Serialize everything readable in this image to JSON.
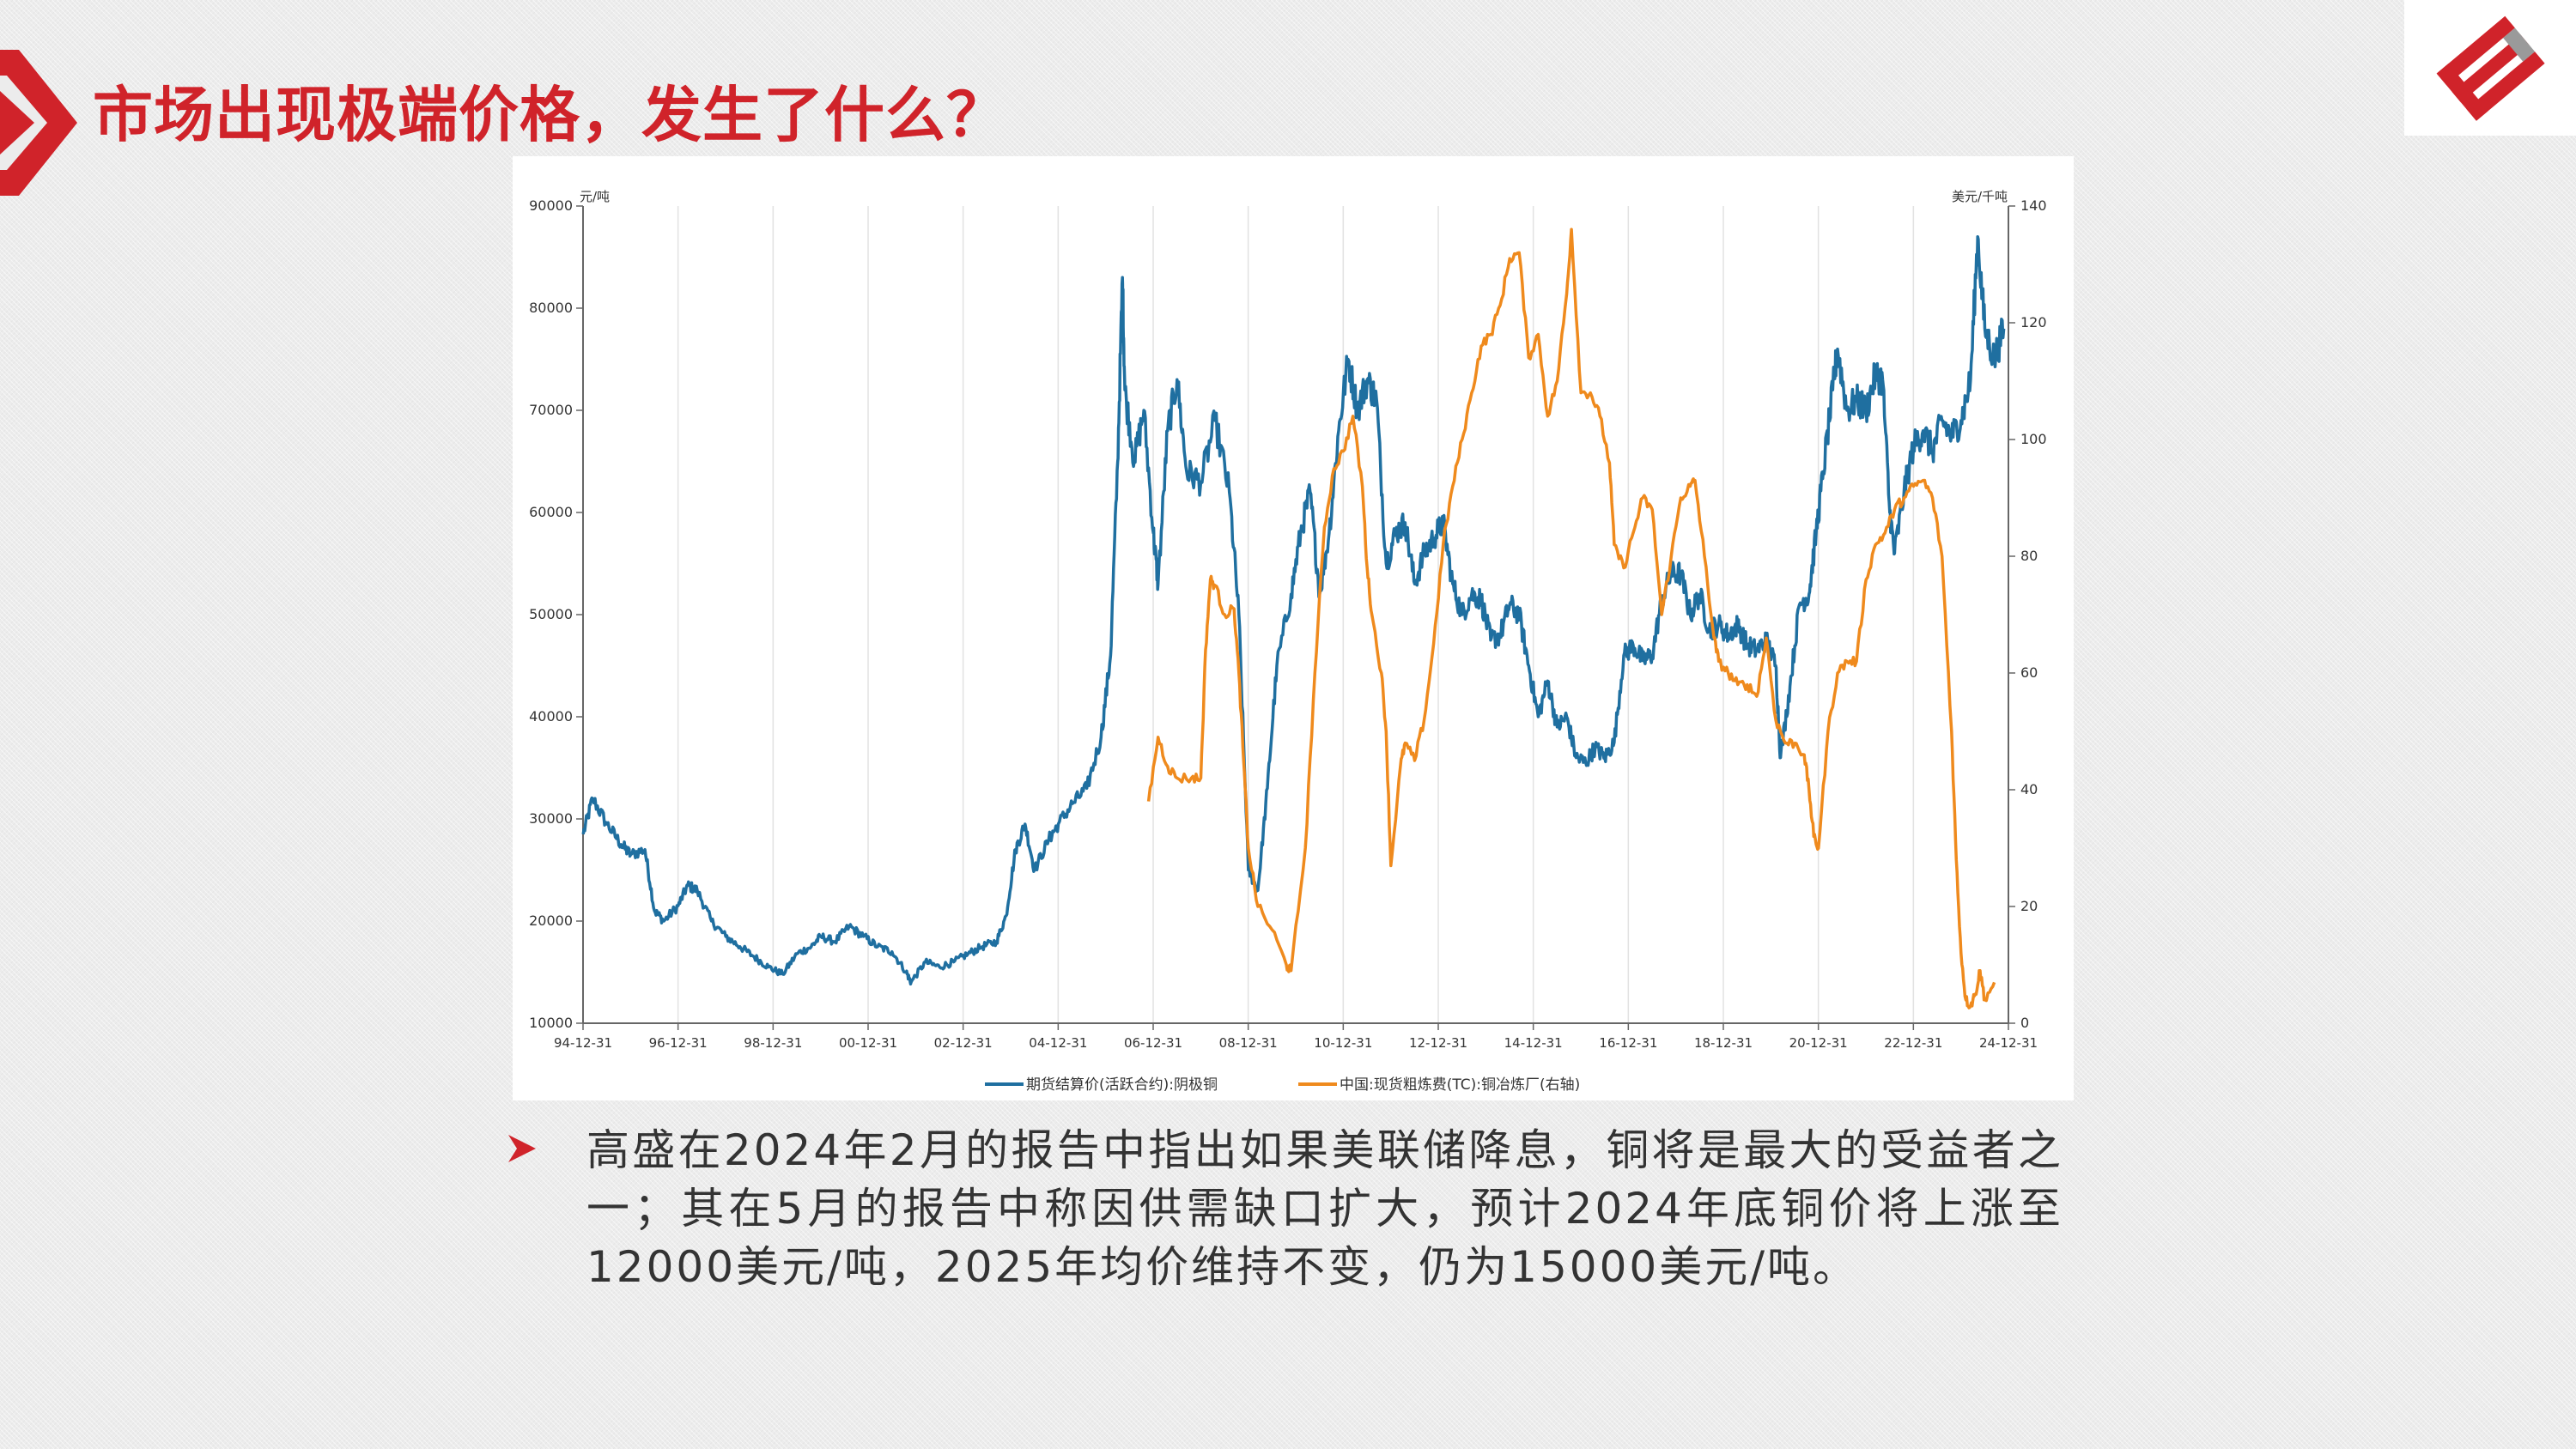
{
  "slide": {
    "title": "市场出现极端价格，发生了什么？",
    "body": "高盛在2024年2月的报告中指出如果美联储降息，铜将是最大的受益者之一；其在5月的报告中称因供需缺口扩大，预计2024年底铜价将上涨至12000美元/吨，2025年均价维持不变，仍为15000美元/吨。"
  },
  "colors": {
    "accent": "#d0232a",
    "series_blue": "#1f6fa0",
    "series_orange": "#ef8a1d"
  },
  "icons": {
    "arrow": "chevron-arrow-icon",
    "logo": "company-logo-icon",
    "bullet": "triangle-bullet-icon"
  },
  "chart_data": {
    "type": "line",
    "left_axis_label": "元/吨",
    "right_axis_label": "美元/千吨",
    "ylim_left": [
      10000,
      90000
    ],
    "ylim_right": [
      0,
      140
    ],
    "y_ticks_left": [
      "90000",
      "80000",
      "70000",
      "60000",
      "50000",
      "40000",
      "30000",
      "20000",
      "10000"
    ],
    "y_ticks_right": [
      "140",
      "120",
      "100",
      "80",
      "60",
      "40",
      "20",
      "0"
    ],
    "x_ticks": [
      "94-12-31",
      "96-12-31",
      "98-12-31",
      "00-12-31",
      "02-12-31",
      "04-12-31",
      "06-12-31",
      "08-12-31",
      "10-12-31",
      "12-12-31",
      "14-12-31",
      "16-12-31",
      "18-12-31",
      "20-12-31",
      "22-12-31",
      "24-12-31"
    ],
    "xlim": [
      1994.997,
      2024.997
    ],
    "grid": "vertical",
    "legend_position": "bottom",
    "series": [
      {
        "name": "期货结算价(活跃合约):阴极铜",
        "axis": "left",
        "points": [
          [
            1995.0,
            28500
          ],
          [
            1995.2,
            32000
          ],
          [
            1995.5,
            29500
          ],
          [
            1995.8,
            27500
          ],
          [
            1996.0,
            26500
          ],
          [
            1996.3,
            27000
          ],
          [
            1996.5,
            21000
          ],
          [
            1996.7,
            20000
          ],
          [
            1997.0,
            21500
          ],
          [
            1997.2,
            23500
          ],
          [
            1997.4,
            23000
          ],
          [
            1997.7,
            20000
          ],
          [
            1998.0,
            18500
          ],
          [
            1998.3,
            17500
          ],
          [
            1998.6,
            16500
          ],
          [
            1998.9,
            15500
          ],
          [
            1999.2,
            14800
          ],
          [
            1999.5,
            16800
          ],
          [
            1999.8,
            17500
          ],
          [
            2000.0,
            18500
          ],
          [
            2000.3,
            18000
          ],
          [
            2000.6,
            19500
          ],
          [
            2000.9,
            18500
          ],
          [
            2001.2,
            17500
          ],
          [
            2001.5,
            17000
          ],
          [
            2001.8,
            15000
          ],
          [
            2001.9,
            14000
          ],
          [
            2002.2,
            16000
          ],
          [
            2002.5,
            15500
          ],
          [
            2002.8,
            16000
          ],
          [
            2003.1,
            16800
          ],
          [
            2003.4,
            17500
          ],
          [
            2003.7,
            18000
          ],
          [
            2003.9,
            20500
          ],
          [
            2004.1,
            27000
          ],
          [
            2004.3,
            29500
          ],
          [
            2004.5,
            25000
          ],
          [
            2004.8,
            28000
          ],
          [
            2005.0,
            29500
          ],
          [
            2005.3,
            31500
          ],
          [
            2005.6,
            33000
          ],
          [
            2005.9,
            38000
          ],
          [
            2006.1,
            46000
          ],
          [
            2006.25,
            65000
          ],
          [
            2006.35,
            83000
          ],
          [
            2006.4,
            72000
          ],
          [
            2006.6,
            65000
          ],
          [
            2006.8,
            70000
          ],
          [
            2007.0,
            58000
          ],
          [
            2007.1,
            53000
          ],
          [
            2007.3,
            68000
          ],
          [
            2007.5,
            73000
          ],
          [
            2007.7,
            64000
          ],
          [
            2008.0,
            63000
          ],
          [
            2008.3,
            69000
          ],
          [
            2008.6,
            62000
          ],
          [
            2008.8,
            50000
          ],
          [
            2009.0,
            25000
          ],
          [
            2009.2,
            23000
          ],
          [
            2009.4,
            33000
          ],
          [
            2009.6,
            45000
          ],
          [
            2009.9,
            52000
          ],
          [
            2010.1,
            58000
          ],
          [
            2010.3,
            62000
          ],
          [
            2010.5,
            52000
          ],
          [
            2010.7,
            58000
          ],
          [
            2010.9,
            68000
          ],
          [
            2011.1,
            75000
          ],
          [
            2011.3,
            70000
          ],
          [
            2011.5,
            73000
          ],
          [
            2011.7,
            71000
          ],
          [
            2011.9,
            55000
          ],
          [
            2012.1,
            58000
          ],
          [
            2012.3,
            59000
          ],
          [
            2012.5,
            53000
          ],
          [
            2012.7,
            56000
          ],
          [
            2012.9,
            57500
          ],
          [
            2013.1,
            59000
          ],
          [
            2013.3,
            53000
          ],
          [
            2013.5,
            50000
          ],
          [
            2013.7,
            52000
          ],
          [
            2013.9,
            51500
          ],
          [
            2014.1,
            47500
          ],
          [
            2014.3,
            48000
          ],
          [
            2014.5,
            51000
          ],
          [
            2014.7,
            50000
          ],
          [
            2014.9,
            45000
          ],
          [
            2015.1,
            40000
          ],
          [
            2015.3,
            43500
          ],
          [
            2015.5,
            39000
          ],
          [
            2015.7,
            40000
          ],
          [
            2015.9,
            36000
          ],
          [
            2016.1,
            35500
          ],
          [
            2016.3,
            37000
          ],
          [
            2016.5,
            36000
          ],
          [
            2016.7,
            37500
          ],
          [
            2016.9,
            46000
          ],
          [
            2017.1,
            47000
          ],
          [
            2017.3,
            45500
          ],
          [
            2017.5,
            46000
          ],
          [
            2017.7,
            51500
          ],
          [
            2017.9,
            54000
          ],
          [
            2018.1,
            54000
          ],
          [
            2018.3,
            50000
          ],
          [
            2018.5,
            52000
          ],
          [
            2018.7,
            48500
          ],
          [
            2018.9,
            49000
          ],
          [
            2019.1,
            48000
          ],
          [
            2019.3,
            49000
          ],
          [
            2019.5,
            47000
          ],
          [
            2019.7,
            46500
          ],
          [
            2019.9,
            47500
          ],
          [
            2020.1,
            45000
          ],
          [
            2020.2,
            36000
          ],
          [
            2020.4,
            43000
          ],
          [
            2020.6,
            51000
          ],
          [
            2020.8,
            52000
          ],
          [
            2020.95,
            58000
          ],
          [
            2021.1,
            64000
          ],
          [
            2021.3,
            72000
          ],
          [
            2021.4,
            76000
          ],
          [
            2021.6,
            70000
          ],
          [
            2021.8,
            71000
          ],
          [
            2022.0,
            70000
          ],
          [
            2022.2,
            73500
          ],
          [
            2022.35,
            73000
          ],
          [
            2022.5,
            60000
          ],
          [
            2022.6,
            56000
          ],
          [
            2022.8,
            62000
          ],
          [
            2023.0,
            66500
          ],
          [
            2023.2,
            68000
          ],
          [
            2023.4,
            66000
          ],
          [
            2023.6,
            69000
          ],
          [
            2023.8,
            67500
          ],
          [
            2024.0,
            69000
          ],
          [
            2024.2,
            73000
          ],
          [
            2024.35,
            87000
          ],
          [
            2024.5,
            78000
          ],
          [
            2024.7,
            75000
          ],
          [
            2024.9,
            78000
          ]
        ]
      },
      {
        "name": "中国:现货粗炼费(TC):铜冶炼厂(右轴)",
        "axis": "right",
        "points": [
          [
            2006.9,
            38
          ],
          [
            2007.1,
            49
          ],
          [
            2007.3,
            44
          ],
          [
            2007.5,
            42
          ],
          [
            2007.8,
            42
          ],
          [
            2008.0,
            42
          ],
          [
            2008.1,
            64
          ],
          [
            2008.2,
            76
          ],
          [
            2008.3,
            75
          ],
          [
            2008.5,
            70
          ],
          [
            2008.7,
            71
          ],
          [
            2008.8,
            60
          ],
          [
            2008.9,
            45
          ],
          [
            2009.0,
            30
          ],
          [
            2009.2,
            20
          ],
          [
            2009.5,
            16
          ],
          [
            2009.8,
            10
          ],
          [
            2009.9,
            9
          ],
          [
            2010.2,
            30
          ],
          [
            2010.4,
            60
          ],
          [
            2010.6,
            85
          ],
          [
            2010.8,
            95
          ],
          [
            2011.0,
            98
          ],
          [
            2011.2,
            104
          ],
          [
            2011.4,
            92
          ],
          [
            2011.5,
            78
          ],
          [
            2011.6,
            70
          ],
          [
            2011.8,
            60
          ],
          [
            2011.9,
            50
          ],
          [
            2012.0,
            27
          ],
          [
            2012.2,
            44
          ],
          [
            2012.3,
            48
          ],
          [
            2012.5,
            45
          ],
          [
            2012.7,
            52
          ],
          [
            2012.9,
            65
          ],
          [
            2013.1,
            82
          ],
          [
            2013.3,
            92
          ],
          [
            2013.5,
            100
          ],
          [
            2013.7,
            108
          ],
          [
            2013.9,
            116
          ],
          [
            2014.1,
            118
          ],
          [
            2014.3,
            123
          ],
          [
            2014.5,
            131
          ],
          [
            2014.7,
            132
          ],
          [
            2014.9,
            114
          ],
          [
            2015.1,
            118
          ],
          [
            2015.3,
            104
          ],
          [
            2015.5,
            110
          ],
          [
            2015.7,
            125
          ],
          [
            2015.8,
            136
          ],
          [
            2016.0,
            108
          ],
          [
            2016.2,
            108
          ],
          [
            2016.4,
            104
          ],
          [
            2016.6,
            96
          ],
          [
            2016.7,
            82
          ],
          [
            2016.9,
            78
          ],
          [
            2017.1,
            84
          ],
          [
            2017.3,
            90
          ],
          [
            2017.5,
            88
          ],
          [
            2017.7,
            70
          ],
          [
            2017.9,
            80
          ],
          [
            2018.1,
            90
          ],
          [
            2018.3,
            92
          ],
          [
            2018.4,
            93
          ],
          [
            2018.6,
            80
          ],
          [
            2018.8,
            66
          ],
          [
            2018.9,
            62
          ],
          [
            2019.1,
            60
          ],
          [
            2019.3,
            58
          ],
          [
            2019.5,
            58
          ],
          [
            2019.7,
            56
          ],
          [
            2019.9,
            66
          ],
          [
            2020.1,
            52
          ],
          [
            2020.3,
            48
          ],
          [
            2020.5,
            48
          ],
          [
            2020.7,
            46
          ],
          [
            2020.8,
            40
          ],
          [
            2020.9,
            32
          ],
          [
            2021.0,
            30
          ],
          [
            2021.2,
            50
          ],
          [
            2021.4,
            60
          ],
          [
            2021.6,
            62
          ],
          [
            2021.8,
            62
          ],
          [
            2022.0,
            76
          ],
          [
            2022.2,
            82
          ],
          [
            2022.4,
            84
          ],
          [
            2022.6,
            88
          ],
          [
            2022.8,
            90
          ],
          [
            2023.0,
            92
          ],
          [
            2023.2,
            93
          ],
          [
            2023.4,
            90
          ],
          [
            2023.6,
            80
          ],
          [
            2023.8,
            50
          ],
          [
            2023.9,
            28
          ],
          [
            2024.0,
            12
          ],
          [
            2024.1,
            4
          ],
          [
            2024.2,
            3
          ],
          [
            2024.3,
            5
          ],
          [
            2024.4,
            9
          ],
          [
            2024.5,
            4
          ],
          [
            2024.7,
            7
          ]
        ]
      }
    ]
  }
}
